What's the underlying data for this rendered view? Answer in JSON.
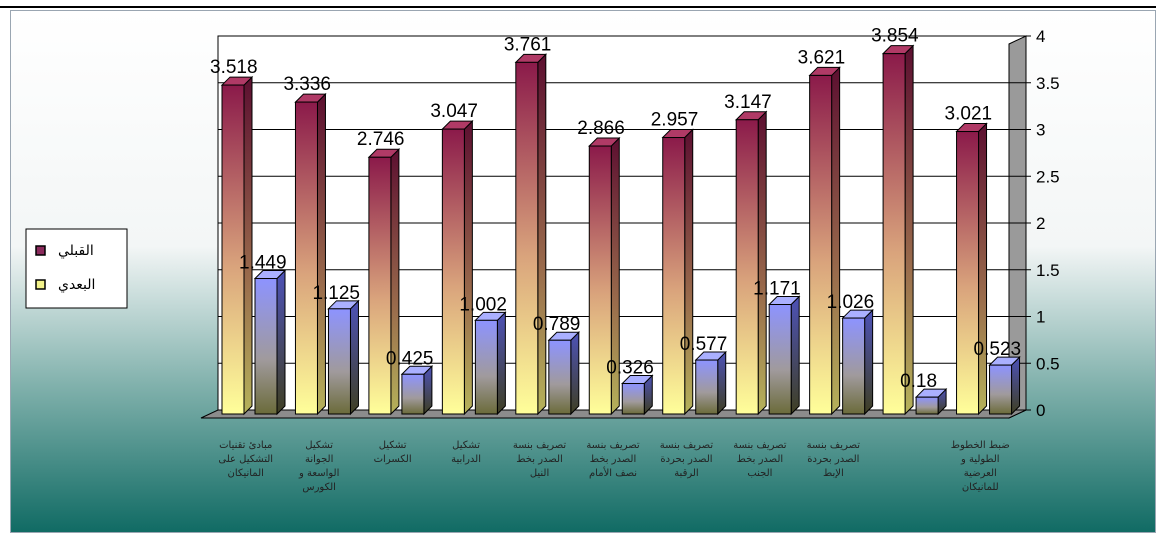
{
  "chart_data": {
    "type": "bar",
    "style": "3d-clustered-column",
    "categories": [
      "مبادئ تقنيات التشكيل على المانيكان",
      "تشكيل الجوانة الواسعة و الكورس",
      "تشكيل الكسرات",
      "تشكيل الدرابية",
      "تصريف بنسة الصدر بخط النيل",
      "تصريف بنسة الصدر بخط نصف الأمام",
      "تصريف بنسة الصدر بحردة الرقبة",
      "تصريف بنسة الصدر بخط الجنب",
      "تصريف بنسة الصدر بحردة الإبط",
      "",
      "ضبط الخطوط الطولية و العرضية للمانيكان"
    ],
    "series": [
      {
        "name": "القبلي",
        "color": "#8b1a4a",
        "values": [
          3.518,
          3.336,
          2.746,
          3.047,
          3.761,
          2.866,
          2.957,
          3.147,
          3.621,
          3.854,
          3.021
        ]
      },
      {
        "name": "البعدي",
        "color": "#7f86f0",
        "values": [
          1.449,
          1.125,
          0.425,
          1.002,
          0.789,
          0.326,
          0.577,
          1.171,
          1.026,
          0.18,
          0.523
        ]
      }
    ],
    "ylim": [
      0,
      4
    ],
    "yticks": [
      "0",
      "0.5",
      "1",
      "1.5",
      "2",
      "2.5",
      "3",
      "3.5",
      "4"
    ],
    "axis_side": "right",
    "grid": true,
    "legend": "left"
  }
}
